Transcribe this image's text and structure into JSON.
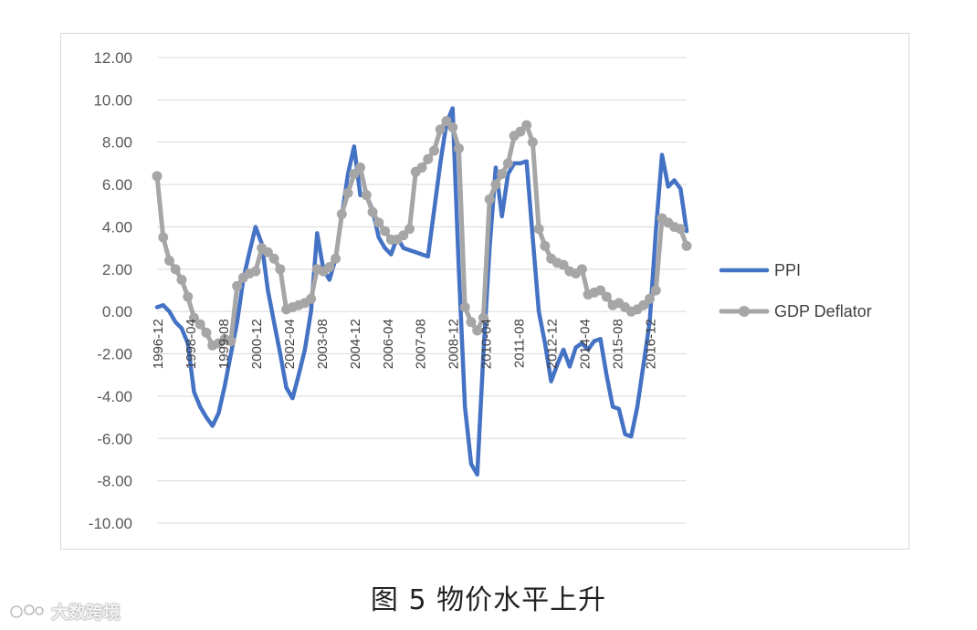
{
  "chart_data": {
    "type": "line",
    "title": "",
    "xlabel": "",
    "ylabel": "",
    "ylim": [
      -10,
      12
    ],
    "yticks": [
      "12.00",
      "10.00",
      "8.00",
      "6.00",
      "4.00",
      "2.00",
      "0.00",
      "-2.00",
      "-4.00",
      "-6.00",
      "-8.00",
      "-10.00"
    ],
    "xticks": [
      "1996-12",
      "1998-04",
      "1999-08",
      "2000-12",
      "2002-04",
      "2003-08",
      "2004-12",
      "2006-04",
      "2007-08",
      "2008-12",
      "2010-04",
      "2011-08",
      "2012-12",
      "2014-04",
      "2015-08",
      "2016-12"
    ],
    "grid": true,
    "legend_position": "right",
    "series": [
      {
        "name": "PPI",
        "color": "#4472c4",
        "markers": false,
        "points": [
          [
            1996.92,
            0.2
          ],
          [
            1997.17,
            0.3
          ],
          [
            1997.42,
            0.0
          ],
          [
            1997.67,
            -0.5
          ],
          [
            1997.92,
            -0.8
          ],
          [
            1998.17,
            -1.5
          ],
          [
            1998.42,
            -3.8
          ],
          [
            1998.67,
            -4.5
          ],
          [
            1998.92,
            -5.0
          ],
          [
            1999.17,
            -5.4
          ],
          [
            1999.42,
            -4.8
          ],
          [
            1999.67,
            -3.5
          ],
          [
            1999.92,
            -2.0
          ],
          [
            2000.17,
            -0.5
          ],
          [
            2000.42,
            1.5
          ],
          [
            2000.67,
            2.8
          ],
          [
            2000.92,
            4.0
          ],
          [
            2001.17,
            3.2
          ],
          [
            2001.42,
            1.0
          ],
          [
            2001.67,
            -0.5
          ],
          [
            2001.92,
            -2.0
          ],
          [
            2002.17,
            -3.6
          ],
          [
            2002.42,
            -4.1
          ],
          [
            2002.67,
            -3.0
          ],
          [
            2002.92,
            -1.8
          ],
          [
            2003.17,
            0.0
          ],
          [
            2003.42,
            3.7
          ],
          [
            2003.67,
            2.0
          ],
          [
            2003.92,
            1.5
          ],
          [
            2004.17,
            2.5
          ],
          [
            2004.42,
            4.5
          ],
          [
            2004.67,
            6.5
          ],
          [
            2004.92,
            7.8
          ],
          [
            2005.17,
            5.5
          ],
          [
            2005.42,
            5.5
          ],
          [
            2005.67,
            4.8
          ],
          [
            2005.92,
            3.5
          ],
          [
            2006.17,
            3.0
          ],
          [
            2006.42,
            2.7
          ],
          [
            2006.67,
            3.5
          ],
          [
            2006.92,
            3.0
          ],
          [
            2007.17,
            2.9
          ],
          [
            2007.42,
            2.8
          ],
          [
            2007.67,
            2.7
          ],
          [
            2007.92,
            2.6
          ],
          [
            2008.17,
            4.8
          ],
          [
            2008.42,
            7.0
          ],
          [
            2008.67,
            8.9
          ],
          [
            2008.92,
            9.6
          ],
          [
            2009.17,
            2.0
          ],
          [
            2009.42,
            -4.5
          ],
          [
            2009.67,
            -7.2
          ],
          [
            2009.92,
            -7.7
          ],
          [
            2010.17,
            -2.0
          ],
          [
            2010.42,
            3.0
          ],
          [
            2010.67,
            6.8
          ],
          [
            2010.92,
            4.5
          ],
          [
            2011.17,
            6.5
          ],
          [
            2011.42,
            7.0
          ],
          [
            2011.67,
            7.0
          ],
          [
            2011.92,
            7.1
          ],
          [
            2012.17,
            3.5
          ],
          [
            2012.42,
            0.0
          ],
          [
            2012.67,
            -1.5
          ],
          [
            2012.92,
            -3.3
          ],
          [
            2013.17,
            -2.5
          ],
          [
            2013.42,
            -1.8
          ],
          [
            2013.67,
            -2.6
          ],
          [
            2013.92,
            -1.7
          ],
          [
            2014.17,
            -1.5
          ],
          [
            2014.42,
            -1.8
          ],
          [
            2014.67,
            -1.4
          ],
          [
            2014.92,
            -1.3
          ],
          [
            2015.17,
            -3.0
          ],
          [
            2015.42,
            -4.5
          ],
          [
            2015.67,
            -4.6
          ],
          [
            2015.92,
            -5.8
          ],
          [
            2016.17,
            -5.9
          ],
          [
            2016.42,
            -4.5
          ],
          [
            2016.67,
            -2.5
          ],
          [
            2016.92,
            -0.5
          ],
          [
            2017.17,
            3.8
          ],
          [
            2017.42,
            7.4
          ],
          [
            2017.67,
            5.9
          ],
          [
            2017.92,
            6.2
          ],
          [
            2018.17,
            5.8
          ],
          [
            2018.42,
            3.8
          ]
        ]
      },
      {
        "name": "GDP Deflator",
        "color": "#a6a6a6",
        "markers": true,
        "points": [
          [
            1996.92,
            6.4
          ],
          [
            1997.17,
            3.5
          ],
          [
            1997.42,
            2.4
          ],
          [
            1997.67,
            2.0
          ],
          [
            1997.92,
            1.5
          ],
          [
            1998.17,
            0.7
          ],
          [
            1998.42,
            -0.3
          ],
          [
            1998.67,
            -0.6
          ],
          [
            1998.92,
            -1.0
          ],
          [
            1999.17,
            -1.6
          ],
          [
            1999.42,
            -1.5
          ],
          [
            1999.67,
            -1.3
          ],
          [
            1999.92,
            -1.4
          ],
          [
            2000.17,
            1.2
          ],
          [
            2000.42,
            1.6
          ],
          [
            2000.67,
            1.8
          ],
          [
            2000.92,
            1.9
          ],
          [
            2001.17,
            3.0
          ],
          [
            2001.42,
            2.8
          ],
          [
            2001.67,
            2.5
          ],
          [
            2001.92,
            2.0
          ],
          [
            2002.17,
            0.1
          ],
          [
            2002.42,
            0.2
          ],
          [
            2002.67,
            0.3
          ],
          [
            2002.92,
            0.4
          ],
          [
            2003.17,
            0.6
          ],
          [
            2003.42,
            2.0
          ],
          [
            2003.67,
            1.9
          ],
          [
            2003.92,
            2.1
          ],
          [
            2004.17,
            2.5
          ],
          [
            2004.42,
            4.6
          ],
          [
            2004.67,
            5.6
          ],
          [
            2004.92,
            6.5
          ],
          [
            2005.17,
            6.8
          ],
          [
            2005.42,
            5.5
          ],
          [
            2005.67,
            4.7
          ],
          [
            2005.92,
            4.2
          ],
          [
            2006.17,
            3.8
          ],
          [
            2006.42,
            3.4
          ],
          [
            2006.67,
            3.4
          ],
          [
            2006.92,
            3.6
          ],
          [
            2007.17,
            3.9
          ],
          [
            2007.42,
            6.6
          ],
          [
            2007.67,
            6.8
          ],
          [
            2007.92,
            7.2
          ],
          [
            2008.17,
            7.6
          ],
          [
            2008.42,
            8.6
          ],
          [
            2008.67,
            9.0
          ],
          [
            2008.92,
            8.7
          ],
          [
            2009.17,
            7.7
          ],
          [
            2009.42,
            0.2
          ],
          [
            2009.67,
            -0.5
          ],
          [
            2009.92,
            -0.9
          ],
          [
            2010.17,
            -0.3
          ],
          [
            2010.42,
            5.3
          ],
          [
            2010.67,
            6.0
          ],
          [
            2010.92,
            6.5
          ],
          [
            2011.17,
            7.0
          ],
          [
            2011.42,
            8.3
          ],
          [
            2011.67,
            8.5
          ],
          [
            2011.92,
            8.8
          ],
          [
            2012.17,
            8.0
          ],
          [
            2012.42,
            3.9
          ],
          [
            2012.67,
            3.1
          ],
          [
            2012.92,
            2.5
          ],
          [
            2013.17,
            2.3
          ],
          [
            2013.42,
            2.2
          ],
          [
            2013.67,
            1.9
          ],
          [
            2013.92,
            1.8
          ],
          [
            2014.17,
            2.0
          ],
          [
            2014.42,
            0.8
          ],
          [
            2014.67,
            0.9
          ],
          [
            2014.92,
            1.0
          ],
          [
            2015.17,
            0.7
          ],
          [
            2015.42,
            0.3
          ],
          [
            2015.67,
            0.4
          ],
          [
            2015.92,
            0.2
          ],
          [
            2016.17,
            0.0
          ],
          [
            2016.42,
            0.1
          ],
          [
            2016.67,
            0.3
          ],
          [
            2016.92,
            0.6
          ],
          [
            2017.17,
            1.0
          ],
          [
            2017.42,
            4.4
          ],
          [
            2017.67,
            4.2
          ],
          [
            2017.92,
            4.0
          ],
          [
            2018.17,
            3.9
          ],
          [
            2018.42,
            3.1
          ]
        ]
      }
    ]
  },
  "caption": "图 5  物价水平上升",
  "watermark": {
    "text": "大数跨境"
  }
}
